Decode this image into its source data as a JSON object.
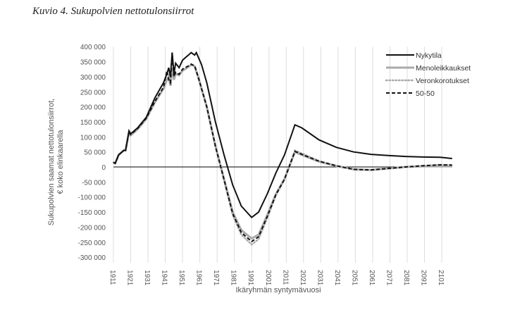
{
  "title": "Kuvio 4. Sukupolvien nettotulonsiirrot",
  "chart_data": {
    "type": "line",
    "title": "Kuvio 4. Sukupolvien nettotulonsiirrot",
    "xlabel": "Ikäryhmän syntymävuosi",
    "ylabel": "Sukupolvien saamat nettotulonsiirrot, € koko elinkaarella",
    "ylim": [
      -300000,
      400000
    ],
    "xlim": [
      1911,
      2107
    ],
    "yticks": [
      400000,
      350000,
      300000,
      250000,
      200000,
      150000,
      100000,
      50000,
      0,
      -50000,
      -100000,
      -150000,
      -200000,
      -250000,
      -300000
    ],
    "ytick_labels": [
      "400 000",
      "350 000",
      "300 000",
      "250 000",
      "200 000",
      "150 000",
      "100 000",
      "50 000",
      "0",
      "-50 000",
      "-100 000",
      "-150 000",
      "-200 000",
      "-250 000",
      "-300 000"
    ],
    "xticks": [
      "1911",
      "1921",
      "1931",
      "1941",
      "1951",
      "1961",
      "1971",
      "1981",
      "1991",
      "2001",
      "2011",
      "2021",
      "2031",
      "2041",
      "2051",
      "2061",
      "2071",
      "2081",
      "2091",
      "2101"
    ],
    "grid": "vertical",
    "legend_position": "top-right",
    "series": [
      {
        "name": "Nykytila",
        "style": "solid-black",
        "x": [
          1911,
          1912,
          1914,
          1917,
          1918,
          1920,
          1921,
          1925,
          1930,
          1935,
          1940,
          1942,
          1943,
          1944,
          1945,
          1946,
          1947,
          1949,
          1951,
          1955,
          1956,
          1958,
          1959,
          1962,
          1965,
          1970,
          1975,
          1980,
          1985,
          1991,
          1995,
          2000,
          2005,
          2010,
          2016,
          2020,
          2030,
          2040,
          2050,
          2060,
          2070,
          2080,
          2090,
          2100,
          2107
        ],
        "y": [
          15000,
          12000,
          40000,
          55000,
          55000,
          120000,
          110000,
          130000,
          165000,
          230000,
          280000,
          310000,
          330000,
          300000,
          380000,
          310000,
          345000,
          330000,
          355000,
          375000,
          380000,
          372000,
          380000,
          340000,
          280000,
          150000,
          40000,
          -60000,
          -130000,
          -168000,
          -150000,
          -90000,
          -20000,
          40000,
          140000,
          130000,
          90000,
          65000,
          50000,
          42000,
          38000,
          35000,
          33000,
          32000,
          28000
        ]
      },
      {
        "name": "Menoleikkaukset",
        "style": "solid-gray",
        "x": [
          1911,
          1912,
          1914,
          1917,
          1918,
          1920,
          1921,
          1925,
          1930,
          1935,
          1940,
          1942,
          1943,
          1944,
          1945,
          1946,
          1947,
          1949,
          1951,
          1955,
          1956,
          1958,
          1960,
          1965,
          1970,
          1975,
          1980,
          1985,
          1991,
          1995,
          2000,
          2005,
          2010,
          2016,
          2020,
          2030,
          2040,
          2050,
          2060,
          2070,
          2080,
          2090,
          2100,
          2107
        ],
        "y": [
          15000,
          12000,
          40000,
          55000,
          55000,
          115000,
          105000,
          125000,
          160000,
          215000,
          260000,
          290000,
          300000,
          270000,
          330000,
          290000,
          310000,
          305000,
          320000,
          335000,
          340000,
          335000,
          300000,
          200000,
          70000,
          -40000,
          -150000,
          -210000,
          -238000,
          -225000,
          -160000,
          -90000,
          -40000,
          50000,
          40000,
          18000,
          3000,
          -8000,
          -10000,
          -5000,
          0,
          2000,
          2000,
          2000
        ]
      },
      {
        "name": "Veronkorotukset",
        "style": "dotted-gray",
        "x": [
          1911,
          1912,
          1914,
          1917,
          1918,
          1920,
          1921,
          1925,
          1930,
          1935,
          1940,
          1942,
          1943,
          1944,
          1945,
          1946,
          1947,
          1949,
          1951,
          1955,
          1956,
          1958,
          1960,
          1965,
          1970,
          1975,
          1980,
          1985,
          1991,
          1995,
          2000,
          2005,
          2010,
          2016,
          2020,
          2030,
          2040,
          2050,
          2060,
          2070,
          2080,
          2090,
          2100,
          2107
        ],
        "y": [
          15000,
          12000,
          40000,
          55000,
          55000,
          115000,
          105000,
          125000,
          160000,
          215000,
          260000,
          290000,
          300000,
          270000,
          330000,
          290000,
          310000,
          305000,
          320000,
          335000,
          340000,
          335000,
          300000,
          200000,
          70000,
          -45000,
          -160000,
          -225000,
          -258000,
          -240000,
          -170000,
          -95000,
          -42000,
          55000,
          45000,
          20000,
          4000,
          -8000,
          -10000,
          -5000,
          0,
          4000,
          7000,
          7000
        ]
      },
      {
        "name": "50-50",
        "style": "dashed-black",
        "x": [
          1911,
          1912,
          1914,
          1917,
          1918,
          1920,
          1921,
          1925,
          1930,
          1935,
          1940,
          1942,
          1943,
          1944,
          1945,
          1946,
          1947,
          1949,
          1951,
          1955,
          1956,
          1958,
          1960,
          1965,
          1970,
          1975,
          1980,
          1985,
          1991,
          1995,
          2000,
          2005,
          2010,
          2016,
          2020,
          2030,
          2040,
          2050,
          2060,
          2070,
          2080,
          2090,
          2100,
          2107
        ],
        "y": [
          15000,
          12000,
          40000,
          55000,
          55000,
          118000,
          108000,
          128000,
          162000,
          218000,
          265000,
          320000,
          290000,
          280000,
          380000,
          300000,
          315000,
          308000,
          325000,
          338000,
          342000,
          336000,
          300000,
          200000,
          70000,
          -42000,
          -155000,
          -218000,
          -248000,
          -232000,
          -165000,
          -92000,
          -41000,
          52000,
          42000,
          19000,
          4000,
          -8000,
          -10000,
          -5000,
          0,
          4000,
          7000,
          6000
        ]
      }
    ]
  }
}
